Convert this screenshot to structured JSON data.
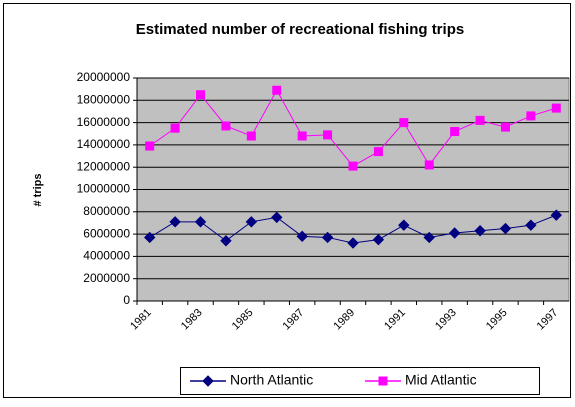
{
  "chart_data": {
    "type": "line",
    "title": "Estimated number of recreational fishing trips",
    "y_label": "# trips",
    "categories": [
      "1981",
      null,
      "1983",
      null,
      "1985",
      null,
      "1987",
      null,
      "1989",
      null,
      "1991",
      null,
      "1993",
      null,
      "1995",
      null,
      "1997"
    ],
    "series": [
      {
        "name": "North Atlantic",
        "color": "#000080",
        "marker": "diamond",
        "values": [
          5700000,
          7100000,
          7100000,
          5400000,
          7100000,
          7500000,
          5800000,
          5700000,
          5200000,
          5500000,
          6800000,
          5700000,
          6100000,
          6300000,
          6500000,
          6800000,
          7700000
        ]
      },
      {
        "name": "Mid Atlantic",
        "color": "#ff00ff",
        "marker": "square",
        "values": [
          13900000,
          15500000,
          18500000,
          15700000,
          14800000,
          18900000,
          14800000,
          14900000,
          12100000,
          13400000,
          16000000,
          12200000,
          15200000,
          16200000,
          15600000,
          16600000,
          17300000
        ]
      }
    ],
    "ylim": [
      0,
      20000000
    ],
    "yticks": [
      0,
      2000000,
      4000000,
      6000000,
      8000000,
      10000000,
      12000000,
      14000000,
      16000000,
      18000000,
      20000000
    ],
    "grid": true,
    "legend": "bottom",
    "plot_background": "#c0c0c0"
  }
}
